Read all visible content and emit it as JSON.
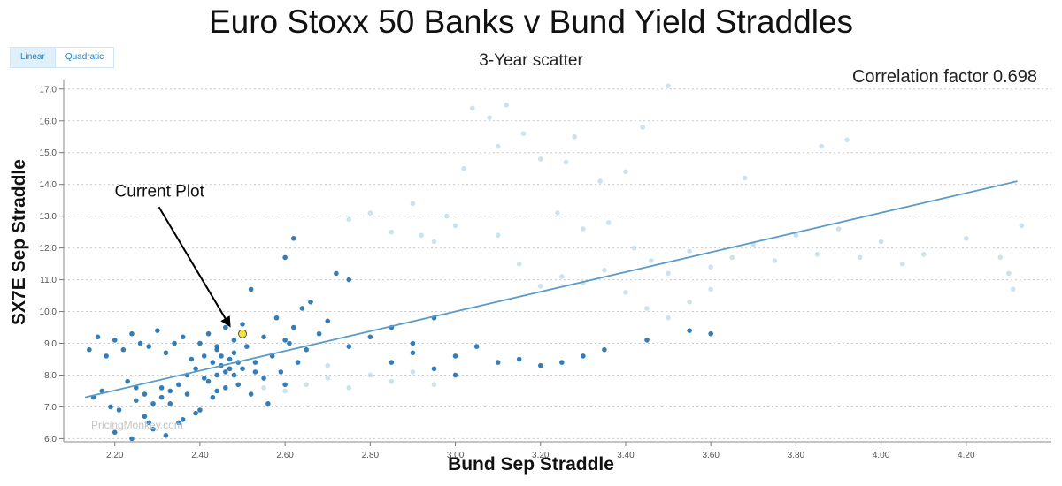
{
  "title": "Euro Stoxx 50 Banks v Bund Yield Straddles",
  "subtitle": "3-Year scatter",
  "correlation_label": "Correlation factor 0.698",
  "watermark": "PricingMonkey.com",
  "toggle": {
    "linear": "Linear",
    "quadratic": "Quadratic",
    "active": "linear"
  },
  "colors": {
    "point": "#1f6fae",
    "point_faded": "#a9cfe6",
    "trend": "#5b9cc8",
    "current": "#f4e23a",
    "arrow": "#000000"
  },
  "chart_data": {
    "type": "scatter",
    "xlabel": "Bund Sep Straddle",
    "ylabel": "SX7E Sep Straddle",
    "xlim": [
      2.08,
      4.4
    ],
    "ylim": [
      5.9,
      17.3
    ],
    "xticks": [
      2.2,
      2.4,
      2.6,
      2.8,
      3.0,
      3.2,
      3.4,
      3.6,
      3.8,
      4.0,
      4.2
    ],
    "xtick_labels": [
      "2.20",
      "2.40",
      "2.60",
      "2.80",
      "3.00",
      "3.20",
      "3.40",
      "3.60",
      "3.80",
      "4.00",
      "4.20"
    ],
    "yticks": [
      6,
      7,
      8,
      9,
      10,
      11,
      12,
      13,
      14,
      15,
      16,
      17
    ],
    "ytick_labels": [
      "6.0",
      "7.0",
      "8.0",
      "9.0",
      "10.0",
      "11.0",
      "12.0",
      "13.0",
      "14.0",
      "15.0",
      "16.0",
      "17.0"
    ],
    "grid": "horizontal-dotted",
    "trendline": {
      "type": "linear",
      "x": [
        2.13,
        4.32
      ],
      "y": [
        7.3,
        14.1
      ]
    },
    "current_point": {
      "x": 2.5,
      "y": 9.3
    },
    "annotations": [
      {
        "text": "Current Plot",
        "x": 2.21,
        "y": 13.9,
        "arrow_to": [
          2.47,
          9.55
        ]
      }
    ],
    "series": [
      {
        "name": "",
        "opacity": "dark",
        "points": [
          [
            2.14,
            8.8
          ],
          [
            2.16,
            9.2
          ],
          [
            2.18,
            8.6
          ],
          [
            2.2,
            9.1
          ],
          [
            2.22,
            8.8
          ],
          [
            2.24,
            9.3
          ],
          [
            2.26,
            9.0
          ],
          [
            2.28,
            8.9
          ],
          [
            2.3,
            9.4
          ],
          [
            2.32,
            8.7
          ],
          [
            2.34,
            9.0
          ],
          [
            2.36,
            9.2
          ],
          [
            2.38,
            8.5
          ],
          [
            2.4,
            9.0
          ],
          [
            2.42,
            9.3
          ],
          [
            2.44,
            8.9
          ],
          [
            2.46,
            9.5
          ],
          [
            2.48,
            9.1
          ],
          [
            2.5,
            9.6
          ],
          [
            2.52,
            10.7
          ],
          [
            2.55,
            9.2
          ],
          [
            2.58,
            9.8
          ],
          [
            2.6,
            9.1
          ],
          [
            2.62,
            9.5
          ],
          [
            2.64,
            10.1
          ],
          [
            2.66,
            10.3
          ],
          [
            2.68,
            9.3
          ],
          [
            2.7,
            9.7
          ],
          [
            2.72,
            11.2
          ],
          [
            2.75,
            11.0
          ],
          [
            2.6,
            11.7
          ],
          [
            2.62,
            12.3
          ],
          [
            2.15,
            7.3
          ],
          [
            2.17,
            7.5
          ],
          [
            2.19,
            7.0
          ],
          [
            2.21,
            6.9
          ],
          [
            2.23,
            7.8
          ],
          [
            2.25,
            7.2
          ],
          [
            2.27,
            6.7
          ],
          [
            2.29,
            6.3
          ],
          [
            2.31,
            7.6
          ],
          [
            2.33,
            7.1
          ],
          [
            2.35,
            6.5
          ],
          [
            2.37,
            7.4
          ],
          [
            2.39,
            6.8
          ],
          [
            2.41,
            7.9
          ],
          [
            2.43,
            7.3
          ],
          [
            2.45,
            8.6
          ],
          [
            2.47,
            8.2
          ],
          [
            2.49,
            7.7
          ],
          [
            2.51,
            8.9
          ],
          [
            2.53,
            8.4
          ],
          [
            2.55,
            7.9
          ],
          [
            2.57,
            8.6
          ],
          [
            2.59,
            8.1
          ],
          [
            2.61,
            9.0
          ],
          [
            2.63,
            8.4
          ],
          [
            2.65,
            8.8
          ],
          [
            2.2,
            6.2
          ],
          [
            2.24,
            6.0
          ],
          [
            2.28,
            6.5
          ],
          [
            2.32,
            6.1
          ],
          [
            2.36,
            6.6
          ],
          [
            2.4,
            6.9
          ],
          [
            2.44,
            7.5
          ],
          [
            2.48,
            8.0
          ],
          [
            2.52,
            7.4
          ],
          [
            2.56,
            7.1
          ],
          [
            2.6,
            7.7
          ],
          [
            2.45,
            8.3
          ],
          [
            2.46,
            8.1
          ],
          [
            2.47,
            8.5
          ],
          [
            2.44,
            8.0
          ],
          [
            2.43,
            8.4
          ],
          [
            2.48,
            8.7
          ],
          [
            2.42,
            7.8
          ],
          [
            2.46,
            7.6
          ],
          [
            2.5,
            8.2
          ],
          [
            2.41,
            8.6
          ],
          [
            2.44,
            8.8
          ],
          [
            2.49,
            8.4
          ],
          [
            2.53,
            8.1
          ],
          [
            2.39,
            8.2
          ],
          [
            2.37,
            8.0
          ],
          [
            2.35,
            7.7
          ],
          [
            2.33,
            7.5
          ],
          [
            2.31,
            7.3
          ],
          [
            2.29,
            7.1
          ],
          [
            2.27,
            7.4
          ],
          [
            2.25,
            7.6
          ],
          [
            2.8,
            9.2
          ],
          [
            2.85,
            9.5
          ],
          [
            2.9,
            9.0
          ],
          [
            2.95,
            9.8
          ],
          [
            3.0,
            8.6
          ],
          [
            3.05,
            8.9
          ],
          [
            3.1,
            8.4
          ],
          [
            3.15,
            8.5
          ],
          [
            3.2,
            8.3
          ],
          [
            3.25,
            8.4
          ],
          [
            3.3,
            8.6
          ],
          [
            3.35,
            8.8
          ],
          [
            3.45,
            9.1
          ],
          [
            3.55,
            9.4
          ],
          [
            3.6,
            9.3
          ],
          [
            2.85,
            8.4
          ],
          [
            2.9,
            8.7
          ],
          [
            2.95,
            8.2
          ],
          [
            3.0,
            8.0
          ],
          [
            2.75,
            8.9
          ]
        ]
      },
      {
        "name": "",
        "opacity": "faded",
        "points": [
          [
            2.75,
            12.9
          ],
          [
            2.8,
            13.1
          ],
          [
            2.85,
            12.5
          ],
          [
            2.9,
            13.4
          ],
          [
            2.95,
            12.2
          ],
          [
            3.0,
            12.7
          ],
          [
            3.02,
            14.5
          ],
          [
            3.04,
            16.4
          ],
          [
            3.08,
            16.1
          ],
          [
            3.1,
            15.2
          ],
          [
            3.12,
            16.5
          ],
          [
            3.16,
            15.6
          ],
          [
            3.2,
            14.8
          ],
          [
            3.24,
            13.1
          ],
          [
            3.28,
            15.5
          ],
          [
            3.34,
            14.1
          ],
          [
            3.4,
            14.4
          ],
          [
            3.5,
            17.1
          ],
          [
            3.3,
            12.6
          ],
          [
            3.36,
            12.8
          ],
          [
            3.42,
            12.0
          ],
          [
            3.46,
            11.6
          ],
          [
            3.5,
            11.2
          ],
          [
            3.55,
            11.9
          ],
          [
            3.6,
            11.4
          ],
          [
            3.65,
            11.7
          ],
          [
            3.7,
            12.1
          ],
          [
            3.75,
            11.6
          ],
          [
            3.8,
            12.4
          ],
          [
            3.85,
            11.8
          ],
          [
            3.9,
            12.6
          ],
          [
            3.95,
            11.7
          ],
          [
            4.0,
            12.2
          ],
          [
            4.05,
            11.5
          ],
          [
            4.1,
            11.8
          ],
          [
            4.2,
            12.3
          ],
          [
            4.28,
            11.7
          ],
          [
            4.3,
            11.2
          ],
          [
            4.33,
            12.7
          ],
          [
            4.31,
            10.7
          ],
          [
            3.4,
            10.6
          ],
          [
            3.45,
            10.1
          ],
          [
            3.5,
            9.8
          ],
          [
            3.55,
            10.3
          ],
          [
            3.6,
            10.7
          ],
          [
            3.3,
            10.9
          ],
          [
            3.35,
            11.3
          ],
          [
            3.25,
            11.1
          ],
          [
            3.2,
            10.8
          ],
          [
            3.15,
            11.5
          ],
          [
            2.65,
            7.7
          ],
          [
            2.7,
            7.9
          ],
          [
            2.75,
            7.6
          ],
          [
            2.8,
            8.0
          ],
          [
            2.85,
            7.8
          ],
          [
            2.9,
            8.1
          ],
          [
            2.95,
            7.7
          ],
          [
            2.7,
            8.3
          ],
          [
            2.6,
            7.5
          ],
          [
            2.55,
            7.6
          ],
          [
            3.92,
            15.4
          ],
          [
            3.86,
            15.2
          ],
          [
            3.68,
            14.2
          ],
          [
            3.44,
            15.8
          ],
          [
            3.26,
            14.7
          ],
          [
            3.1,
            12.4
          ],
          [
            2.98,
            13.0
          ],
          [
            2.92,
            12.4
          ]
        ]
      }
    ]
  }
}
